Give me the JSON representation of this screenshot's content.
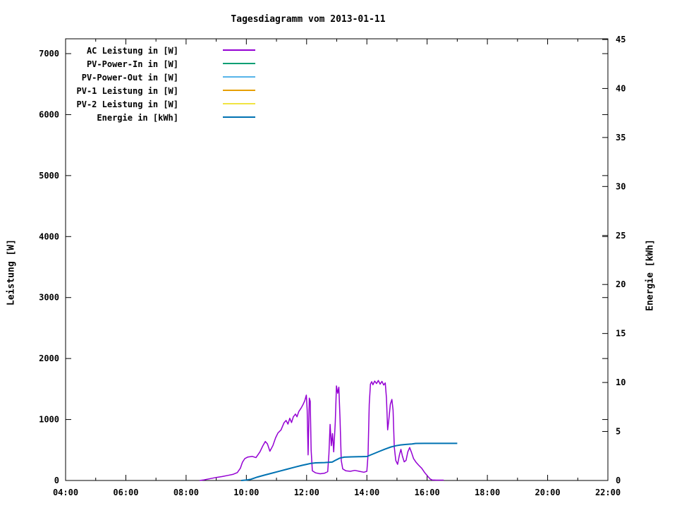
{
  "title": "Tagesdiagramm vom 2013-01-11",
  "y1_axis_label": "Leistung [W]",
  "y2_axis_label": "Energie [kWh]",
  "legend": [
    {
      "label": "AC Leistung in [W]",
      "color": "#9400D3"
    },
    {
      "label": "PV-Power-In in [W]",
      "color": "#009E73"
    },
    {
      "label": "PV-Power-Out in [W]",
      "color": "#56B4E9"
    },
    {
      "label": "PV-1 Leistung in [W]",
      "color": "#E69F00"
    },
    {
      "label": "PV-2 Leistung in [W]",
      "color": "#F0E442"
    },
    {
      "label": "Energie in [kWh]",
      "color": "#0072B2"
    }
  ],
  "chart_data": {
    "type": "line",
    "title": "Tagesdiagramm vom 2013-01-11",
    "grid": false,
    "legend_position": "inside-top-left",
    "x_range_hours": [
      4,
      22
    ],
    "x_major_ticks": [
      {
        "h": 4,
        "label": "04:00"
      },
      {
        "h": 6,
        "label": "06:00"
      },
      {
        "h": 8,
        "label": "08:00"
      },
      {
        "h": 10,
        "label": "10:00"
      },
      {
        "h": 12,
        "label": "12:00"
      },
      {
        "h": 14,
        "label": "14:00"
      },
      {
        "h": 16,
        "label": "16:00"
      },
      {
        "h": 18,
        "label": "18:00"
      },
      {
        "h": 20,
        "label": "20:00"
      },
      {
        "h": 22,
        "label": "22:00"
      }
    ],
    "x_minor_hours": [
      5,
      7,
      9,
      11,
      13,
      15,
      17,
      19,
      21
    ],
    "y1": {
      "label": "Leistung [W]",
      "range": [
        0,
        7243
      ],
      "ticks": [
        0,
        1000,
        2000,
        3000,
        4000,
        5000,
        6000,
        7000
      ]
    },
    "y2": {
      "label": "Energie [kWh]",
      "range": [
        0,
        45.07
      ],
      "ticks": [
        0,
        5,
        10,
        15,
        20,
        25,
        30,
        35,
        40,
        45
      ]
    },
    "series": [
      {
        "name": "AC Leistung in [W]",
        "color": "#9400D3",
        "axis": "y1",
        "width": 1.5,
        "points": [
          [
            8.45,
            0
          ],
          [
            8.6,
            10
          ],
          [
            8.75,
            25
          ],
          [
            9.0,
            50
          ],
          [
            9.2,
            65
          ],
          [
            9.4,
            85
          ],
          [
            9.55,
            100
          ],
          [
            9.7,
            130
          ],
          [
            9.8,
            200
          ],
          [
            9.87,
            300
          ],
          [
            9.95,
            360
          ],
          [
            10.05,
            385
          ],
          [
            10.2,
            395
          ],
          [
            10.32,
            375
          ],
          [
            10.45,
            470
          ],
          [
            10.55,
            570
          ],
          [
            10.63,
            640
          ],
          [
            10.7,
            600
          ],
          [
            10.78,
            480
          ],
          [
            10.88,
            570
          ],
          [
            10.97,
            700
          ],
          [
            11.05,
            780
          ],
          [
            11.15,
            830
          ],
          [
            11.25,
            945
          ],
          [
            11.32,
            985
          ],
          [
            11.38,
            925
          ],
          [
            11.44,
            1020
          ],
          [
            11.5,
            950
          ],
          [
            11.56,
            1045
          ],
          [
            11.63,
            1090
          ],
          [
            11.68,
            1045
          ],
          [
            11.74,
            1130
          ],
          [
            11.82,
            1190
          ],
          [
            11.88,
            1245
          ],
          [
            11.94,
            1310
          ],
          [
            11.99,
            1400
          ],
          [
            12.02,
            1150
          ],
          [
            12.05,
            420
          ],
          [
            12.09,
            1350
          ],
          [
            12.12,
            1300
          ],
          [
            12.15,
            500
          ],
          [
            12.19,
            160
          ],
          [
            12.3,
            125
          ],
          [
            12.45,
            110
          ],
          [
            12.6,
            120
          ],
          [
            12.7,
            145
          ],
          [
            12.74,
            430
          ],
          [
            12.78,
            920
          ],
          [
            12.82,
            570
          ],
          [
            12.86,
            770
          ],
          [
            12.9,
            470
          ],
          [
            12.95,
            950
          ],
          [
            12.99,
            1550
          ],
          [
            13.03,
            1430
          ],
          [
            13.07,
            1530
          ],
          [
            13.11,
            1000
          ],
          [
            13.15,
            330
          ],
          [
            13.2,
            190
          ],
          [
            13.3,
            160
          ],
          [
            13.45,
            150
          ],
          [
            13.6,
            165
          ],
          [
            13.75,
            150
          ],
          [
            13.9,
            135
          ],
          [
            14.0,
            150
          ],
          [
            14.04,
            420
          ],
          [
            14.08,
            1250
          ],
          [
            14.12,
            1580
          ],
          [
            14.16,
            1620
          ],
          [
            14.2,
            1570
          ],
          [
            14.26,
            1630
          ],
          [
            14.32,
            1590
          ],
          [
            14.38,
            1640
          ],
          [
            14.44,
            1580
          ],
          [
            14.5,
            1625
          ],
          [
            14.56,
            1565
          ],
          [
            14.61,
            1600
          ],
          [
            14.65,
            1350
          ],
          [
            14.69,
            830
          ],
          [
            14.73,
            1000
          ],
          [
            14.78,
            1250
          ],
          [
            14.83,
            1330
          ],
          [
            14.87,
            1150
          ],
          [
            14.91,
            550
          ],
          [
            14.96,
            330
          ],
          [
            15.02,
            265
          ],
          [
            15.08,
            420
          ],
          [
            15.13,
            510
          ],
          [
            15.18,
            400
          ],
          [
            15.24,
            305
          ],
          [
            15.3,
            330
          ],
          [
            15.36,
            470
          ],
          [
            15.42,
            540
          ],
          [
            15.48,
            460
          ],
          [
            15.55,
            360
          ],
          [
            15.63,
            300
          ],
          [
            15.72,
            250
          ],
          [
            15.82,
            200
          ],
          [
            15.92,
            130
          ],
          [
            16.02,
            70
          ],
          [
            16.1,
            25
          ],
          [
            16.17,
            8
          ],
          [
            16.3,
            6
          ],
          [
            16.55,
            6
          ]
        ]
      },
      {
        "name": "PV-Power-In in [W]",
        "color": "#009E73",
        "axis": "y1",
        "width": 1.5,
        "points": []
      },
      {
        "name": "PV-Power-Out in [W]",
        "color": "#56B4E9",
        "axis": "y1",
        "width": 1.5,
        "points": []
      },
      {
        "name": "PV-1 Leistung in [W]",
        "color": "#E69F00",
        "axis": "y1",
        "width": 1.5,
        "points": []
      },
      {
        "name": "PV-2 Leistung in [W]",
        "color": "#F0E442",
        "axis": "y1",
        "width": 1.5,
        "points": []
      },
      {
        "name": "Energie in [kWh]",
        "color": "#0072B2",
        "axis": "y2",
        "width": 2,
        "points": [
          [
            9.83,
            0
          ],
          [
            10.0,
            0.04
          ],
          [
            10.15,
            0.12
          ],
          [
            10.37,
            0.35
          ],
          [
            10.6,
            0.55
          ],
          [
            10.85,
            0.75
          ],
          [
            11.1,
            0.95
          ],
          [
            11.35,
            1.15
          ],
          [
            11.6,
            1.35
          ],
          [
            11.85,
            1.55
          ],
          [
            12.0,
            1.65
          ],
          [
            12.15,
            1.75
          ],
          [
            12.3,
            1.8
          ],
          [
            12.6,
            1.83
          ],
          [
            12.85,
            1.88
          ],
          [
            12.95,
            2.05
          ],
          [
            13.1,
            2.28
          ],
          [
            13.25,
            2.38
          ],
          [
            13.5,
            2.41
          ],
          [
            13.8,
            2.43
          ],
          [
            14.0,
            2.45
          ],
          [
            14.2,
            2.7
          ],
          [
            14.4,
            2.95
          ],
          [
            14.6,
            3.2
          ],
          [
            14.8,
            3.42
          ],
          [
            14.97,
            3.55
          ],
          [
            15.12,
            3.63
          ],
          [
            15.3,
            3.68
          ],
          [
            15.5,
            3.73
          ],
          [
            15.62,
            3.78
          ],
          [
            15.9,
            3.79
          ],
          [
            16.4,
            3.79
          ],
          [
            17.0,
            3.79
          ]
        ]
      }
    ]
  }
}
